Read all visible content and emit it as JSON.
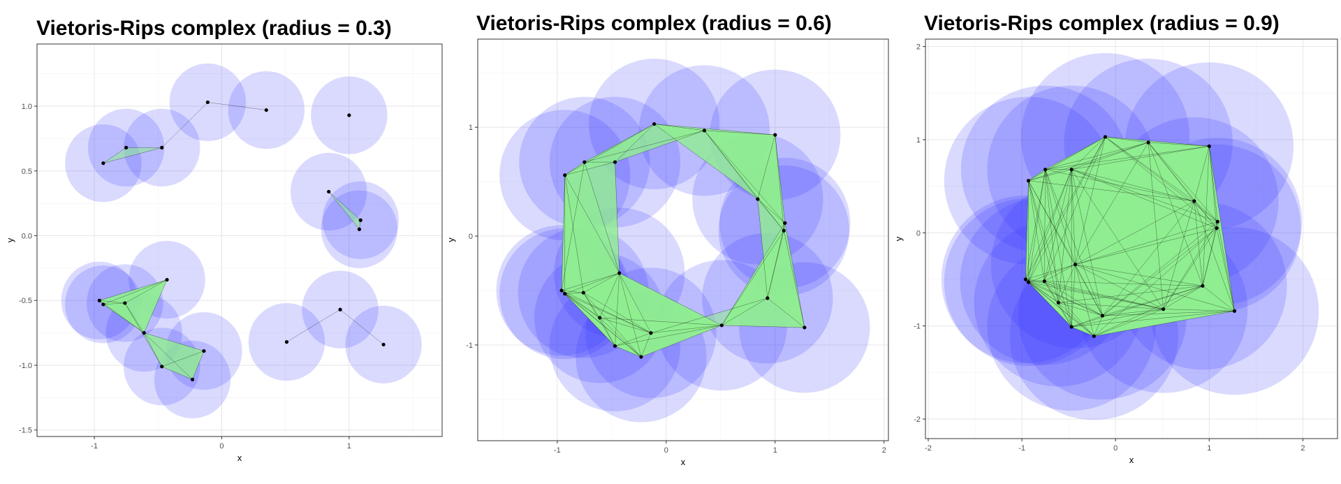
{
  "chart_data": [
    {
      "type": "scatter",
      "title": "Vietoris-Rips complex (radius = 0.3)",
      "radius": 0.3,
      "xlabel": "x",
      "ylabel": "y",
      "xlim": [
        -1.45,
        1.73
      ],
      "ylim": [
        -1.55,
        1.48
      ],
      "x_ticks": [
        -1,
        0,
        1
      ],
      "y_ticks": [
        -1.5,
        -1.0,
        -0.5,
        0.0,
        0.5,
        1.0
      ],
      "y_tick_labels": [
        "-1.5",
        "-1.0",
        "-0.5",
        "0.0",
        "0.5",
        "1.0"
      ]
    },
    {
      "type": "scatter",
      "title": "Vietoris-Rips complex (radius = 0.6)",
      "radius": 0.6,
      "xlabel": "x",
      "ylabel": "y",
      "xlim": [
        -1.73,
        2.04
      ],
      "ylim": [
        -1.88,
        1.81
      ],
      "x_ticks": [
        -1,
        0,
        1,
        2
      ],
      "y_ticks": [
        -1,
        0,
        1
      ],
      "y_tick_labels": [
        "-1",
        "0",
        "1"
      ]
    },
    {
      "type": "scatter",
      "title": "Vietoris-Rips complex (radius = 0.9)",
      "radius": 0.9,
      "xlabel": "x",
      "ylabel": "y",
      "xlim": [
        -2.03,
        2.37
      ],
      "ylim": [
        -2.21,
        2.08
      ],
      "x_ticks": [
        -2,
        -1,
        0,
        1,
        2
      ],
      "y_ticks": [
        -2,
        -1,
        0,
        1,
        2
      ],
      "y_tick_labels": [
        "-2",
        "-1",
        "0",
        "1",
        "2"
      ]
    }
  ],
  "points": [
    {
      "x": -0.93,
      "y": 0.56
    },
    {
      "x": -0.75,
      "y": 0.68
    },
    {
      "x": -0.47,
      "y": 0.68
    },
    {
      "x": -0.11,
      "y": 1.03
    },
    {
      "x": 0.35,
      "y": 0.97
    },
    {
      "x": 1.0,
      "y": 0.93
    },
    {
      "x": 0.84,
      "y": 0.34
    },
    {
      "x": 1.09,
      "y": 0.12
    },
    {
      "x": 1.08,
      "y": 0.05
    },
    {
      "x": -0.43,
      "y": -0.34
    },
    {
      "x": -0.96,
      "y": -0.5
    },
    {
      "x": -0.93,
      "y": -0.53
    },
    {
      "x": -0.76,
      "y": -0.52
    },
    {
      "x": -0.61,
      "y": -0.75
    },
    {
      "x": -0.14,
      "y": -0.89
    },
    {
      "x": -0.47,
      "y": -1.01
    },
    {
      "x": -0.23,
      "y": -1.11
    },
    {
      "x": 0.51,
      "y": -0.82
    },
    {
      "x": 0.93,
      "y": -0.57
    },
    {
      "x": 1.27,
      "y": -0.84
    }
  ],
  "colors": {
    "ball": "#3333ff",
    "ball_opacity": 0.18,
    "simplex_fill": "#90ee90",
    "simplex_opacity": 0.55,
    "edge": "#000000",
    "point": "#000000"
  }
}
